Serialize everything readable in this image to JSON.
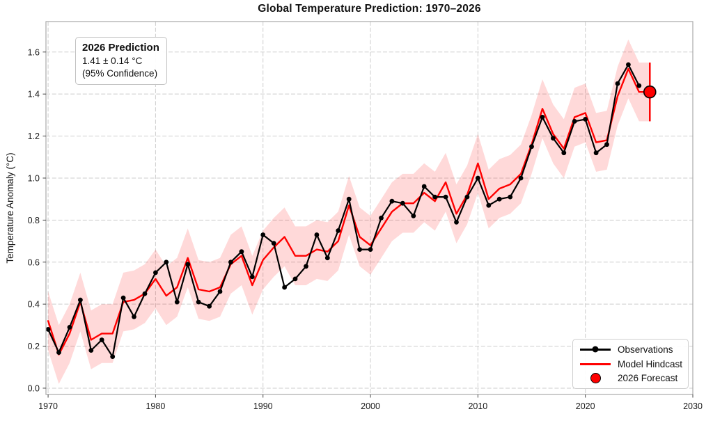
{
  "title": "Global Temperature Prediction: 1970–2026",
  "y_axis_label": "Temperature Anomaly (°C)",
  "annotation": {
    "heading": "2026 Prediction",
    "value_line": "1.41 ± 0.14 °C",
    "confidence_line": "(95% Confidence)"
  },
  "legend": {
    "position": "lower right",
    "items": [
      {
        "label": "Observations",
        "marker": "line-with-dot",
        "color": "#000000"
      },
      {
        "label": "Model Hindcast",
        "marker": "line",
        "color": "#ff0000"
      },
      {
        "label": "2026 Forecast",
        "marker": "dot",
        "color": "#ff0000"
      }
    ]
  },
  "colors": {
    "observations": "#000000",
    "hindcast": "#ff0000",
    "confidence_band": "rgba(255,0,0,0.15)",
    "forecast_marker_fill": "#ff0000",
    "forecast_marker_edge": "#000000",
    "gridline": "#cdcdcd",
    "spine": "#a9a9a9",
    "tick_text": "#1a1a1a"
  },
  "chart_data": {
    "type": "line",
    "title": "Global Temperature Prediction: 1970–2026",
    "xlabel": "",
    "ylabel": "Temperature Anomaly (°C)",
    "xlim": [
      1969.8,
      2030
    ],
    "ylim": [
      -0.03,
      1.745
    ],
    "grid": "dashed",
    "x_ticks": [
      1970,
      1980,
      1990,
      2000,
      2010,
      2020,
      2030
    ],
    "x_tick_labels": [
      "1970",
      "1980",
      "1990",
      "2000",
      "2010",
      "2020",
      "2030"
    ],
    "y_ticks": [
      0.0,
      0.2,
      0.4,
      0.6,
      0.8,
      1.0,
      1.2,
      1.4,
      1.6
    ],
    "y_tick_labels": [
      "0.0",
      "0.2",
      "0.4",
      "0.6",
      "0.8",
      "1.0",
      "1.2",
      "1.4",
      "1.6"
    ],
    "years": [
      1970,
      1971,
      1972,
      1973,
      1974,
      1975,
      1976,
      1977,
      1978,
      1979,
      1980,
      1981,
      1982,
      1983,
      1984,
      1985,
      1986,
      1987,
      1988,
      1989,
      1990,
      1991,
      1992,
      1993,
      1994,
      1995,
      1996,
      1997,
      1998,
      1999,
      2000,
      2001,
      2002,
      2003,
      2004,
      2005,
      2006,
      2007,
      2008,
      2009,
      2010,
      2011,
      2012,
      2013,
      2014,
      2015,
      2016,
      2017,
      2018,
      2019,
      2020,
      2021,
      2022,
      2023,
      2024,
      2025,
      2026
    ],
    "series": [
      {
        "name": "Observations",
        "values": [
          0.28,
          0.17,
          0.29,
          0.42,
          0.18,
          0.23,
          0.15,
          0.43,
          0.34,
          0.45,
          0.55,
          0.6,
          0.41,
          0.59,
          0.41,
          0.39,
          0.46,
          0.6,
          0.65,
          0.53,
          0.73,
          0.69,
          0.48,
          0.52,
          0.58,
          0.73,
          0.62,
          0.75,
          0.9,
          0.66,
          0.66,
          0.81,
          0.89,
          0.88,
          0.82,
          0.96,
          0.91,
          0.91,
          0.79,
          0.91,
          1.0,
          0.87,
          0.9,
          0.91,
          1.0,
          1.15,
          1.29,
          1.19,
          1.12,
          1.27,
          1.28,
          1.12,
          1.16,
          1.45,
          1.54,
          1.44,
          null
        ]
      },
      {
        "name": "Model Hindcast",
        "values": [
          0.32,
          0.16,
          0.26,
          0.41,
          0.23,
          0.26,
          0.26,
          0.41,
          0.42,
          0.45,
          0.52,
          0.44,
          0.48,
          0.62,
          0.47,
          0.46,
          0.48,
          0.59,
          0.63,
          0.49,
          0.61,
          0.67,
          0.72,
          0.63,
          0.63,
          0.66,
          0.65,
          0.7,
          0.87,
          0.72,
          0.68,
          0.76,
          0.84,
          0.88,
          0.88,
          0.93,
          0.89,
          0.98,
          0.83,
          0.92,
          1.07,
          0.9,
          0.95,
          0.97,
          1.02,
          1.16,
          1.33,
          1.21,
          1.14,
          1.29,
          1.31,
          1.17,
          1.18,
          1.39,
          1.52,
          1.41,
          1.41
        ]
      }
    ],
    "confidence_band": {
      "follows": "Model Hindcast",
      "halfwidth": 0.14,
      "label": "95% Confidence"
    },
    "forecast_point": {
      "year": 2026,
      "value": 1.41,
      "ci": 0.14,
      "label": "2026 Forecast"
    }
  }
}
